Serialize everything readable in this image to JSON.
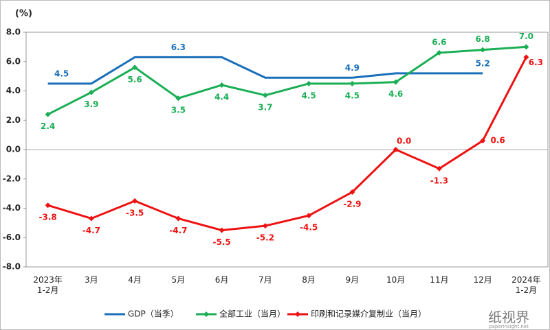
{
  "chart_data": {
    "type": "line",
    "ylabel": "(%)",
    "categories": [
      "2023年\n1-2月",
      "3月",
      "4月",
      "5月",
      "6月",
      "7月",
      "8月",
      "9月",
      "10月",
      "11月",
      "12月",
      "2024年\n1-2月"
    ],
    "series": [
      {
        "name": "GDP（当季）",
        "color": "#1a6fba",
        "markers": false,
        "values": [
          4.5,
          4.5,
          6.3,
          6.3,
          6.3,
          4.9,
          4.9,
          4.9,
          5.2,
          5.2,
          5.2,
          null
        ],
        "value_labels": [
          "4.5",
          null,
          null,
          "6.3",
          null,
          null,
          null,
          "4.9",
          null,
          null,
          "5.2",
          null
        ]
      },
      {
        "name": "全部工业（当月）",
        "color": "#1aae55",
        "markers": true,
        "values": [
          2.4,
          3.9,
          5.6,
          3.5,
          4.4,
          3.7,
          4.5,
          4.5,
          4.6,
          6.6,
          6.8,
          7.0
        ],
        "value_labels": [
          "2.4",
          "3.9",
          "5.6",
          "3.5",
          "4.4",
          "3.7",
          "4.5",
          "4.5",
          "4.6",
          "6.6",
          "6.8",
          "7.0"
        ]
      },
      {
        "name": "印刷和记录媒介复制业（当月）",
        "color": "#ee1111",
        "markers": true,
        "values": [
          -3.8,
          -4.7,
          -3.5,
          -4.7,
          -5.5,
          -5.2,
          -4.5,
          -2.9,
          0.0,
          -1.3,
          0.6,
          6.3
        ],
        "value_labels": [
          "-3.8",
          "-4.7",
          "-3.5",
          "-4.7",
          "-5.5",
          "-5.2",
          "-4.5",
          "-2.9",
          "0.0",
          "-1.3",
          "0.6",
          "6.3"
        ]
      }
    ],
    "ylim": [
      -8,
      8
    ],
    "yticks": [
      {
        "value": -8,
        "label": "-8.0"
      },
      {
        "value": -6,
        "label": "-6.0"
      },
      {
        "value": -4,
        "label": "-4.0"
      },
      {
        "value": -2,
        "label": "-2.0"
      },
      {
        "value": 0,
        "label": "0.0"
      },
      {
        "value": 2,
        "label": "2.0"
      },
      {
        "value": 4,
        "label": "4.0"
      },
      {
        "value": 6,
        "label": "6.0"
      },
      {
        "value": 8,
        "label": "8.0"
      }
    ],
    "legend": "bottom",
    "watermark": {
      "text": "纸视界",
      "url": "paperinsight.net"
    }
  }
}
